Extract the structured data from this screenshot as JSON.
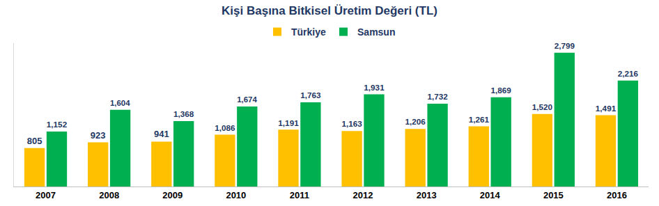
{
  "chart_data": {
    "type": "bar",
    "title": "Kişi Başına Bitkisel Üretim Değeri (TL)",
    "categories": [
      "2007",
      "2008",
      "2009",
      "2010",
      "2011",
      "2012",
      "2013",
      "2014",
      "2015",
      "2016"
    ],
    "series": [
      {
        "name": "Türkiye",
        "color": "#FFC000",
        "values": [
          805,
          923,
          941,
          1086,
          1191,
          1163,
          1206,
          1261,
          1520,
          1491
        ],
        "value_labels": [
          "805",
          "923",
          "941",
          "1,086",
          "1,191",
          "1,163",
          "1,206",
          "1,261",
          "1,520",
          "1,491"
        ]
      },
      {
        "name": "Samsun",
        "color": "#00B050",
        "values": [
          1152,
          1604,
          1368,
          1674,
          1763,
          1931,
          1732,
          1869,
          2799,
          2216
        ],
        "value_labels": [
          "1,152",
          "1,604",
          "1,368",
          "1,674",
          "1,763",
          "1,931",
          "1,732",
          "1,869",
          "2,799",
          "2,216"
        ]
      }
    ],
    "ylim": [
      0,
      3000
    ],
    "grid": false,
    "legend": "top",
    "data_labels": true,
    "tick_labels": "x"
  }
}
